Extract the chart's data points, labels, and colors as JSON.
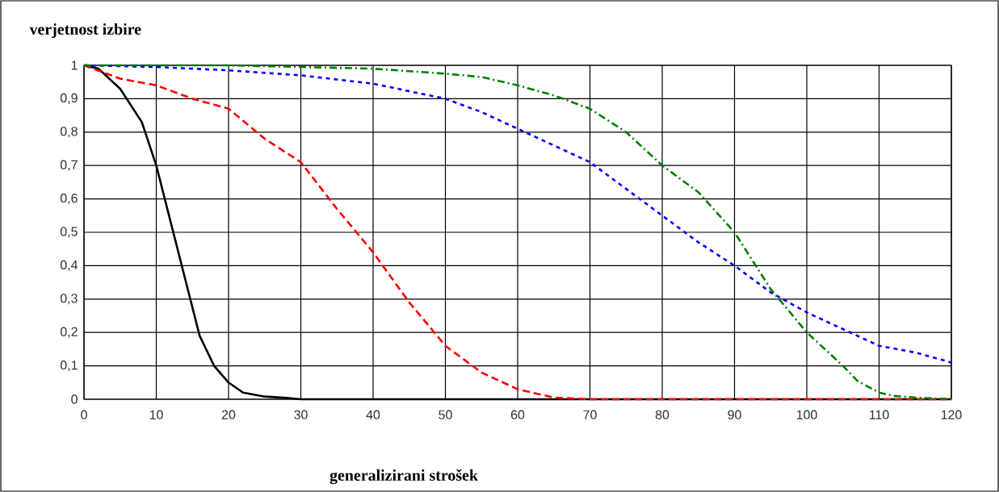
{
  "chart_data": {
    "type": "line",
    "title": "verjetnost izbire",
    "xlabel": "generalizirani strošek",
    "xlim": [
      0,
      120
    ],
    "ylim": [
      0,
      1
    ],
    "xticks": [
      0,
      10,
      20,
      30,
      40,
      50,
      60,
      70,
      80,
      90,
      100,
      110,
      120
    ],
    "yticks": [
      0,
      {
        "value": 0.1,
        "label": "0,1"
      },
      {
        "value": 0.2,
        "label": "0,2"
      },
      {
        "value": 0.3,
        "label": "0,3"
      },
      {
        "value": 0.4,
        "label": "0,4"
      },
      {
        "value": 0.5,
        "label": "0,5"
      },
      {
        "value": 0.6,
        "label": "0,6"
      },
      {
        "value": 0.7,
        "label": "0,7"
      },
      {
        "value": 0.8,
        "label": "0,8"
      },
      {
        "value": 0.9,
        "label": "0,9"
      },
      1
    ],
    "grid": true,
    "series": [
      {
        "color": "#000000",
        "line_style": "solid",
        "x": [
          0,
          2,
          5,
          8,
          10,
          12,
          14,
          16,
          18,
          20,
          22,
          25,
          28,
          30,
          40,
          60,
          80,
          100,
          120
        ],
        "values": [
          1,
          0.99,
          0.93,
          0.83,
          0.7,
          0.53,
          0.36,
          0.19,
          0.1,
          0.05,
          0.02,
          0.008,
          0.004,
          0,
          0,
          0,
          0,
          0,
          0
        ]
      },
      {
        "color": "#ff0000",
        "line_style": "dashed",
        "x": [
          0,
          5,
          10,
          15,
          20,
          25,
          30,
          35,
          40,
          45,
          50,
          55,
          60,
          65,
          70,
          80,
          100,
          120
        ],
        "values": [
          1,
          0.96,
          0.94,
          0.9,
          0.87,
          0.78,
          0.71,
          0.57,
          0.44,
          0.29,
          0.16,
          0.08,
          0.03,
          0.005,
          0,
          0,
          0,
          0
        ]
      },
      {
        "color": "#0000ff",
        "line_style": "dotted",
        "x": [
          0,
          10,
          20,
          30,
          40,
          50,
          55,
          60,
          65,
          70,
          75,
          80,
          85,
          90,
          95,
          100,
          105,
          110,
          115,
          120
        ],
        "values": [
          1,
          0.995,
          0.985,
          0.97,
          0.945,
          0.9,
          0.86,
          0.81,
          0.76,
          0.71,
          0.63,
          0.55,
          0.47,
          0.4,
          0.32,
          0.26,
          0.21,
          0.16,
          0.14,
          0.11
        ]
      },
      {
        "color": "#008000",
        "line_style": "dashdot",
        "x": [
          0,
          20,
          30,
          40,
          50,
          55,
          60,
          65,
          70,
          75,
          80,
          85,
          90,
          95,
          100,
          105,
          107,
          110,
          112,
          115,
          120
        ],
        "values": [
          1,
          1,
          0.995,
          0.99,
          0.975,
          0.965,
          0.94,
          0.91,
          0.87,
          0.8,
          0.7,
          0.62,
          0.5,
          0.33,
          0.2,
          0.1,
          0.055,
          0.02,
          0.01,
          0.005,
          0
        ]
      }
    ]
  }
}
